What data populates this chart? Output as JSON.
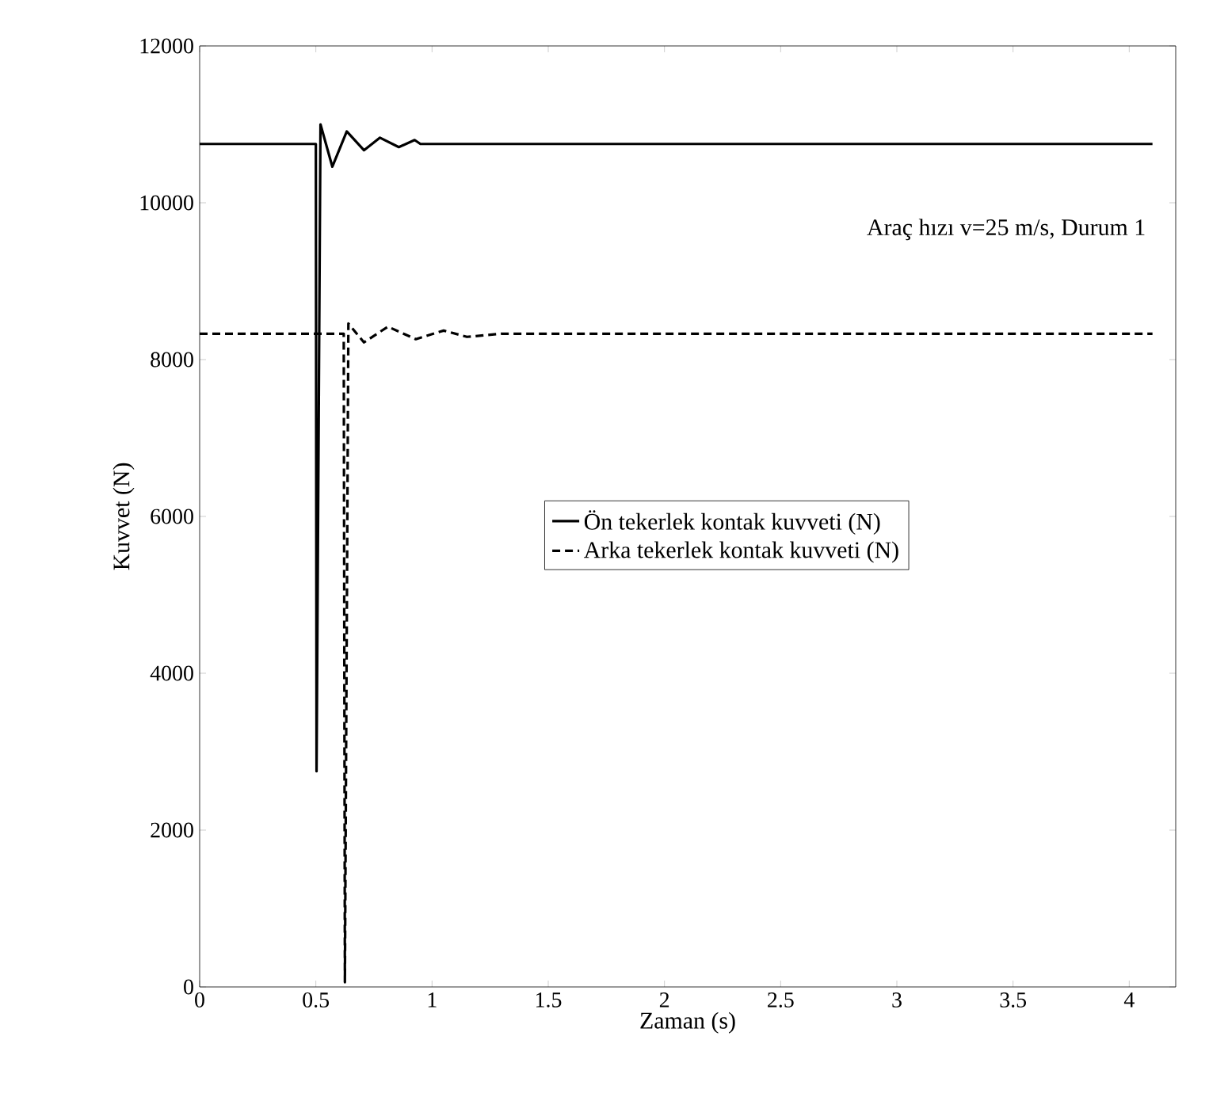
{
  "chart_data": {
    "type": "line",
    "xlabel": "Zaman (s)",
    "ylabel": "Kuvvet  (N)",
    "annotations": [
      "Araç hızı v=25 m/s, Durum 1"
    ],
    "xlim": [
      0,
      4.2
    ],
    "ylim": [
      0,
      12000
    ],
    "xticks": [
      0,
      0.5,
      1,
      1.5,
      2,
      2.5,
      3,
      3.5,
      4
    ],
    "yticks": [
      0,
      2000,
      4000,
      6000,
      8000,
      10000,
      12000
    ],
    "grid": false,
    "legend": "center",
    "marker": "none",
    "series": [
      {
        "name": "Ön tekerlek kontak kuvveti (N)",
        "color": "#000000",
        "line_style": "solid",
        "x": [
          0,
          0.5,
          0.503,
          0.52,
          0.571,
          0.633,
          0.707,
          0.776,
          0.857,
          0.925,
          0.95,
          4.1
        ],
        "values": [
          10750,
          10750,
          2750,
          11000,
          10460,
          10910,
          10670,
          10830,
          10710,
          10800,
          10750,
          10750
        ]
      },
      {
        "name": "Arka tekerlek kontak kuvveti (N)",
        "color": "#000000",
        "line_style": "dashed",
        "x": [
          0,
          0.62,
          0.625,
          0.64,
          0.707,
          0.81,
          0.93,
          1.05,
          1.15,
          1.3,
          4.1
        ],
        "values": [
          8330,
          8330,
          60,
          8460,
          8220,
          8420,
          8260,
          8370,
          8290,
          8330,
          8330
        ]
      }
    ]
  }
}
